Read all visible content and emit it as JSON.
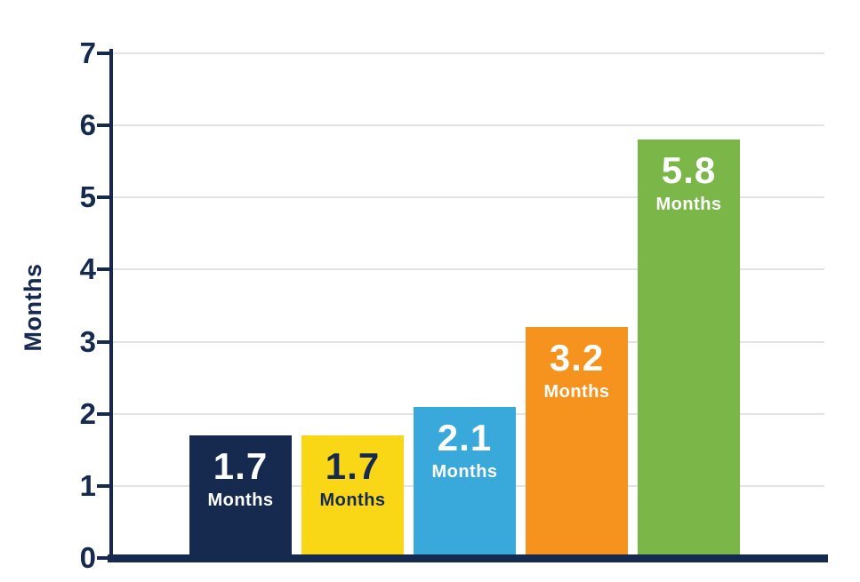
{
  "chart_data": {
    "type": "bar",
    "title": "",
    "xlabel": "",
    "ylabel": "Months",
    "ylim": [
      0,
      7
    ],
    "yticks": [
      "0",
      "1",
      "2",
      "3",
      "4",
      "5",
      "6",
      "7"
    ],
    "grid": true,
    "legend": false,
    "categories": [
      "",
      "",
      "",
      "",
      ""
    ],
    "values": [
      1.7,
      1.7,
      2.1,
      3.2,
      5.8
    ],
    "bar_display_labels": [
      "1.7",
      "1.7",
      "2.1",
      "3.2",
      "5.8"
    ],
    "bar_unit_label": "Months",
    "bar_colors": [
      "#16294f",
      "#f9d616",
      "#39a9dc",
      "#f6921e",
      "#7ab648"
    ],
    "bar_label_colors": [
      "#ffffff",
      "#16294f",
      "#ffffff",
      "#ffffff",
      "#ffffff"
    ],
    "axis_color": "#16294f",
    "grid_color": "#e3e3e6",
    "background_color": "#ffffff"
  }
}
